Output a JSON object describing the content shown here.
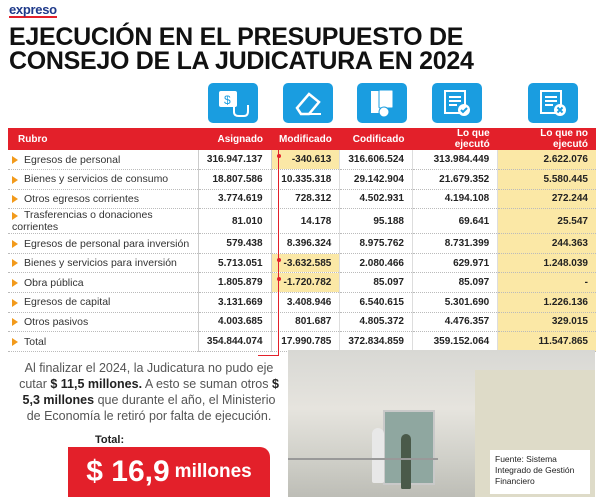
{
  "brand": "expreso",
  "title_line1": "EJECUCIÓN EN EL PRESUPUESTO DE",
  "title_line2": "CONSEJO DE LA JUDICATURA EN 2024",
  "icons": [
    "money-touch-icon",
    "eraser-icon",
    "calculator-document-icon",
    "document-check-icon",
    "document-x-icon"
  ],
  "table": {
    "headers": [
      "Rubro",
      "Asignado",
      "Modificado",
      "Codificado",
      "Lo que ejecutó",
      "Lo que no ejecutó"
    ],
    "rows": [
      [
        "Egresos de personal",
        "316.947.137",
        "-340.613",
        "316.606.524",
        "313.984.449",
        "2.622.076"
      ],
      [
        "Bienes y servicios de consumo",
        "18.807.586",
        "10.335.318",
        "29.142.904",
        "21.679.352",
        "5.580.445"
      ],
      [
        "Otros egresos corrientes",
        "3.774.619",
        "728.312",
        "4.502.931",
        "4.194.108",
        "272.244"
      ],
      [
        "Trasferencias o donaciones corrientes",
        "81.010",
        "14.178",
        "95.188",
        "69.641",
        "25.547"
      ],
      [
        "Egresos de personal para inversión",
        "579.438",
        "8.396.324",
        "8.975.762",
        "8.731.399",
        "244.363"
      ],
      [
        "Bienes y servicios para inversión",
        "5.713.051",
        "-3.632.585",
        "2.080.466",
        "629.971",
        "1.248.039"
      ],
      [
        "Obra pública",
        "1.805.879",
        "-1.720.782",
        "85.097",
        "85.097",
        "-"
      ],
      [
        "Egresos de capital",
        "3.131.669",
        "3.408.946",
        "6.540.615",
        "5.301.690",
        "1.226.136"
      ],
      [
        "Otros pasivos",
        "4.003.685",
        "801.687",
        "4.805.372",
        "4.476.357",
        "329.015"
      ],
      [
        "Total",
        "354.844.074",
        "17.990.785",
        "372.834.859",
        "359.152.064",
        "11.547.865"
      ]
    ]
  },
  "note": {
    "p1": "Al finalizar el 2024, la Judicatura no pudo eje cutar ",
    "b1": "$ 11,5 millones.",
    "p2": " A esto se suman otros ",
    "b2": "$ 5,3 millones",
    "p3": " que durante el año, el Ministerio de Economía le retiró por falta de ejecución."
  },
  "total_label": "Total:",
  "total_amount": "$ 16,9",
  "total_unit": "millones",
  "source": "Fuente: Sistema Integrado de Gestión Financiero",
  "colors": {
    "red": "#e3202a",
    "blue": "#1a9de0",
    "highlight": "#fbe8a6"
  }
}
